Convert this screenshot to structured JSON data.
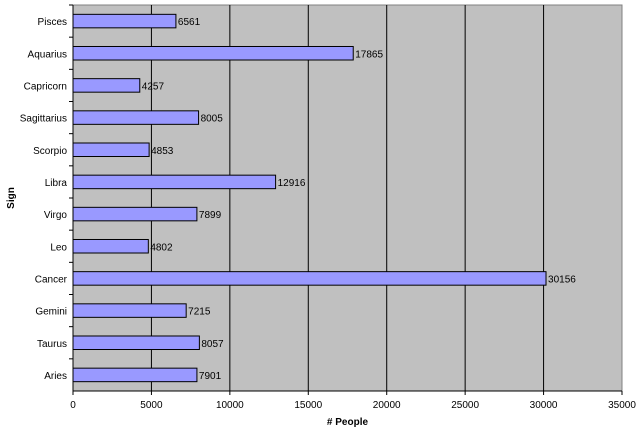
{
  "chart_data": {
    "type": "bar",
    "orientation": "horizontal",
    "title": "",
    "xlabel": "# People",
    "ylabel": "Sign",
    "xlim": [
      0,
      35000
    ],
    "x_ticks": [
      0,
      5000,
      10000,
      15000,
      20000,
      25000,
      30000,
      35000
    ],
    "categories": [
      "Pisces",
      "Aquarius",
      "Capricorn",
      "Sagittarius",
      "Scorpio",
      "Libra",
      "Virgo",
      "Leo",
      "Cancer",
      "Gemini",
      "Taurus",
      "Aries"
    ],
    "values": [
      6561,
      17865,
      4257,
      8005,
      4853,
      12916,
      7899,
      4802,
      30156,
      7215,
      8057,
      7901
    ],
    "grid": "vertical",
    "legend": "none",
    "colors": {
      "bar_fill": "#9999ff",
      "bar_stroke": "#000000",
      "plot_background": "#c0c0c0",
      "gridline": "#000000"
    }
  }
}
